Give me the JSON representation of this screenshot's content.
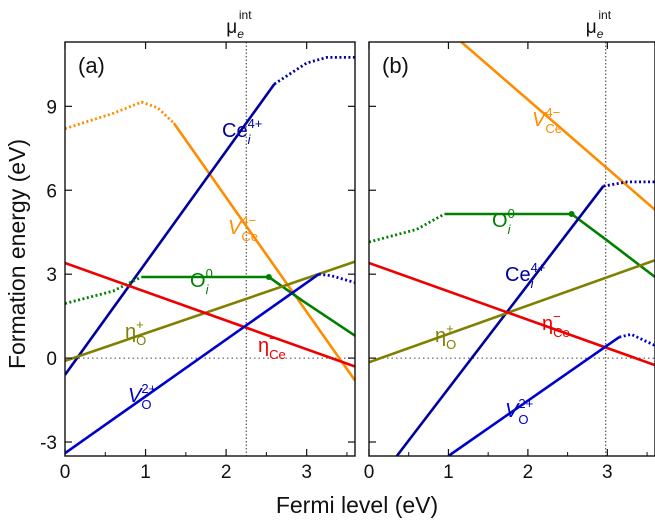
{
  "chart_data": {
    "type": "line",
    "ylabel": "Formation energy (eV)",
    "xlabel": "Fermi level (eV)",
    "grid": false,
    "panels": [
      {
        "tag": "(a)",
        "xlim": [
          0,
          3.6
        ],
        "ylim": [
          -3.5,
          11.3
        ],
        "xticks": [
          "0",
          "1",
          "2",
          "3"
        ],
        "yticks": [
          "-3",
          "0",
          "3",
          "6",
          "9"
        ],
        "mu_label": {
          "base": "μ",
          "sub": "e",
          "sup": "int"
        },
        "mu_x": 2.25,
        "series": [
          {
            "name": "V_Ce^4-",
            "label": {
              "main": "V",
              "sub": "Ce",
              "sup": "4−",
              "italic": true
            },
            "color": "#ff8c00",
            "dotted": [
              [
                0,
                8.2
              ],
              [
                0.6,
                8.75
              ],
              [
                0.95,
                9.15
              ],
              [
                1.15,
                8.95
              ],
              [
                1.35,
                8.4
              ]
            ],
            "solid": [
              [
                1.35,
                8.4
              ],
              [
                3.6,
                -0.8
              ]
            ]
          },
          {
            "name": "Ce_i^4+",
            "label": {
              "main": "Ce",
              "sub": "i",
              "sup": "4+",
              "italic": false
            },
            "color": "#00009f",
            "solid": [
              [
                0,
                -0.6
              ],
              [
                2.6,
                9.8
              ]
            ],
            "dotted": [
              [
                2.6,
                9.8
              ],
              [
                3.0,
                10.55
              ],
              [
                3.25,
                10.75
              ],
              [
                3.6,
                10.75
              ]
            ]
          },
          {
            "name": "O_i^0",
            "label": {
              "main": "O",
              "sub": "i",
              "sup": "0",
              "italic": false
            },
            "color": "#008000",
            "dotted": [
              [
                0,
                1.95
              ],
              [
                0.6,
                2.4
              ],
              [
                0.95,
                2.9
              ]
            ],
            "solid": [
              [
                0.95,
                2.9
              ],
              [
                2.53,
                2.9
              ],
              [
                2.95,
                2.05
              ],
              [
                3.6,
                0.8
              ]
            ]
          },
          {
            "name": "eta_O^+",
            "label": {
              "main": "η",
              "sub": "O",
              "sup": "+",
              "italic": false
            },
            "color": "#808000",
            "solid": [
              [
                0,
                -0.1
              ],
              [
                3.6,
                3.45
              ]
            ]
          },
          {
            "name": "eta_Ce^-",
            "label": {
              "main": "η",
              "sub": "Ce",
              "sup": "−",
              "italic": false
            },
            "color": "#ee0000",
            "solid": [
              [
                0,
                3.4
              ],
              [
                3.6,
                -0.3
              ]
            ]
          },
          {
            "name": "V_O^2+",
            "label": {
              "main": "V",
              "sub": "O",
              "sup": "2+",
              "italic": true
            },
            "color": "#0000cd",
            "solid": [
              [
                0,
                -3.4
              ],
              [
                3.15,
                3.0
              ]
            ],
            "dotted": [
              [
                3.15,
                3.0
              ],
              [
                3.3,
                2.95
              ],
              [
                3.6,
                2.7
              ]
            ]
          }
        ]
      },
      {
        "tag": "(b)",
        "xlim": [
          0,
          3.6
        ],
        "ylim": [
          -3.5,
          11.3
        ],
        "xticks": [
          "0",
          "1",
          "2",
          "3"
        ],
        "yticks": [],
        "mu_label": {
          "base": "μ",
          "sub": "e",
          "sup": "int"
        },
        "mu_x": 2.98,
        "series": [
          {
            "name": "V_Ce^4-",
            "label": {
              "main": "V",
              "sub": "Ce",
              "sup": "4−",
              "italic": true
            },
            "color": "#ff8c00",
            "solid": [
              [
                1.0,
                11.7
              ],
              [
                3.6,
                5.3
              ]
            ]
          },
          {
            "name": "O_i^0",
            "label": {
              "main": "O",
              "sub": "i",
              "sup": "0",
              "italic": false
            },
            "color": "#008000",
            "dotted": [
              [
                0,
                4.15
              ],
              [
                0.6,
                4.6
              ],
              [
                0.95,
                5.15
              ]
            ],
            "solid": [
              [
                0.95,
                5.15
              ],
              [
                2.55,
                5.15
              ],
              [
                3.0,
                4.2
              ],
              [
                3.6,
                2.9
              ]
            ]
          },
          {
            "name": "Ce_i^4+",
            "label": {
              "main": "Ce",
              "sub": "i",
              "sup": "4+",
              "italic": false
            },
            "color": "#00009f",
            "solid": [
              [
                0.35,
                -3.5
              ],
              [
                2.95,
                6.15
              ]
            ],
            "dotted": [
              [
                2.95,
                6.15
              ],
              [
                3.25,
                6.3
              ],
              [
                3.6,
                6.3
              ]
            ]
          },
          {
            "name": "eta_O^+",
            "label": {
              "main": "η",
              "sub": "O",
              "sup": "+",
              "italic": false
            },
            "color": "#808000",
            "solid": [
              [
                0,
                -0.15
              ],
              [
                3.6,
                3.5
              ]
            ]
          },
          {
            "name": "eta_Ce^-",
            "label": {
              "main": "η",
              "sub": "Ce",
              "sup": "−",
              "italic": false
            },
            "color": "#ee0000",
            "solid": [
              [
                0,
                3.4
              ],
              [
                3.6,
                -0.25
              ]
            ]
          },
          {
            "name": "V_O^2+",
            "label": {
              "main": "V",
              "sub": "O",
              "sup": "2+",
              "italic": true
            },
            "color": "#0000cd",
            "solid": [
              [
                1.0,
                -3.5
              ],
              [
                3.15,
                0.75
              ]
            ],
            "dotted": [
              [
                3.15,
                0.75
              ],
              [
                3.3,
                0.85
              ],
              [
                3.6,
                0.45
              ]
            ]
          }
        ]
      }
    ]
  }
}
